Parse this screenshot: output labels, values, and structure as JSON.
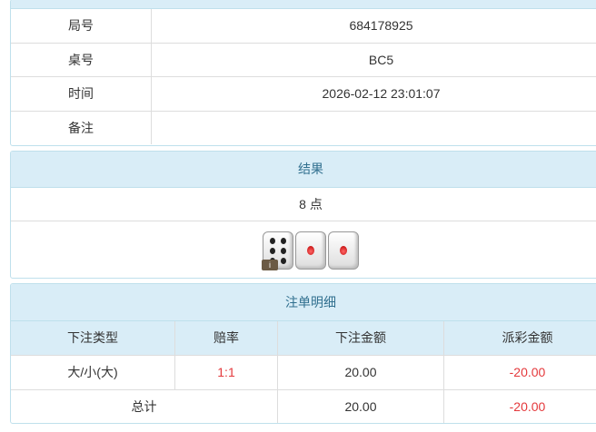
{
  "info": {
    "rows": [
      {
        "label": "局号",
        "value": "684178925"
      },
      {
        "label": "桌号",
        "value": "BC5"
      },
      {
        "label": "时间",
        "value": "2026-02-12 23:01:07"
      },
      {
        "label": "备注",
        "value": ""
      }
    ]
  },
  "result": {
    "title": "结果",
    "points": "8 点",
    "dice": [
      6,
      1,
      1
    ],
    "info_badge": "i"
  },
  "bets": {
    "title": "注单明细",
    "columns": [
      "下注类型",
      "赔率",
      "下注金额",
      "派彩金额"
    ],
    "rows": [
      {
        "type": "大/小(大)",
        "odds": "1:1",
        "amount": "20.00",
        "payout": "-20.00"
      }
    ],
    "total": {
      "label": "总计",
      "amount": "20.00",
      "payout": "-20.00"
    }
  },
  "colors": {
    "header_bg": "#d9edf7",
    "header_text": "#31708f",
    "negative": "#e4393c"
  }
}
